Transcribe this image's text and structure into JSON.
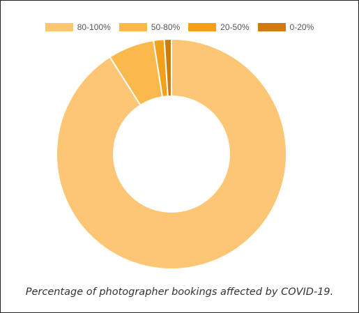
{
  "chart_data": {
    "type": "pie",
    "categories": [
      "80-100%",
      "50-80%",
      "20-50%",
      "0-20%"
    ],
    "values": [
      91,
      6.5,
      1.5,
      1
    ],
    "colors": [
      "#fcc674",
      "#fbb84c",
      "#f3a01d",
      "#cf7a12"
    ],
    "legend_position": "top",
    "donut": true
  },
  "caption": "Percentage of photographer bookings affected by COVID-19."
}
